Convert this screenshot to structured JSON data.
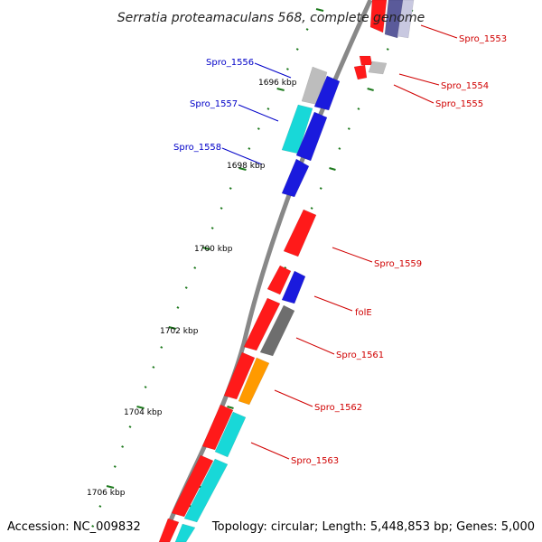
{
  "title": "Serratia proteamaculans 568, complete genome",
  "footer": {
    "accession": "Accession: NC_009832",
    "summary": "Topology: circular; Length: 5,448,853 bp; Genes: 5,000"
  },
  "scale_labels": [
    "1696 kbp",
    "1698 kbp",
    "1700 kbp",
    "1702 kbp",
    "1704 kbp",
    "1706 kbp"
  ],
  "genes": [
    {
      "label": "Spro_1553",
      "color": "#d00000"
    },
    {
      "label": "Spro_1554",
      "color": "#d00000"
    },
    {
      "label": "Spro_1555",
      "color": "#d00000"
    },
    {
      "label": "Spro_1556",
      "color": "#0000c8"
    },
    {
      "label": "Spro_1557",
      "color": "#0000c8"
    },
    {
      "label": "Spro_1558",
      "color": "#0000c8"
    },
    {
      "label": "Spro_1559",
      "color": "#d00000"
    },
    {
      "label": "folE",
      "color": "#d00000"
    },
    {
      "label": "Spro_1561",
      "color": "#d00000"
    },
    {
      "label": "Spro_1562",
      "color": "#d00000"
    },
    {
      "label": "Spro_1563",
      "color": "#d00000"
    }
  ],
  "colors": {
    "backbone": "#888888",
    "tick": "#1e7a1e",
    "red": "#ff1a1a",
    "blue": "#1a1add",
    "cyan": "#18d8d8",
    "gray": "#bdbdbd",
    "darkgray": "#6e6e6e",
    "orange": "#ff9a00",
    "line_red": "#d00000",
    "line_blue": "#0000c8"
  }
}
